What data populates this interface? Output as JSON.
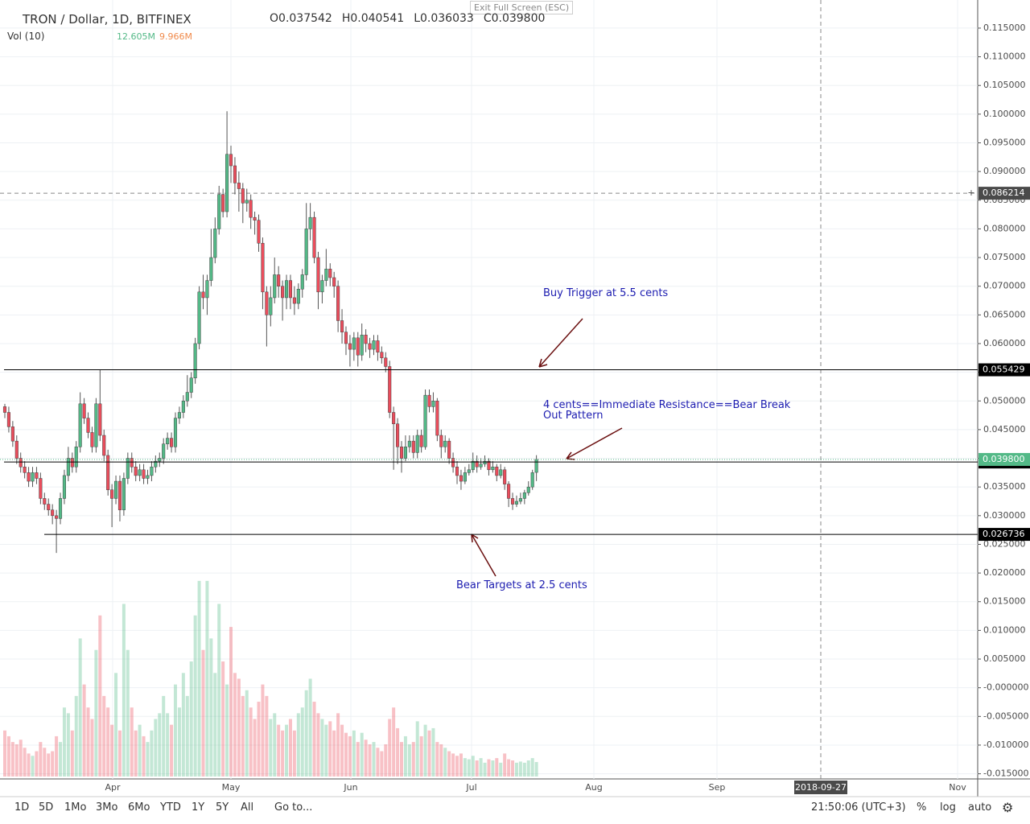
{
  "chart_data": {
    "type": "candlestick",
    "title": "TRON / Dollar, 1D, BITFINEX",
    "tooltip": "Exit Full Screen (ESC)",
    "ohlc_legend": [
      {
        "label": "O",
        "value": "0.037542"
      },
      {
        "label": "H",
        "value": "0.040541"
      },
      {
        "label": "L",
        "value": "0.036033"
      },
      {
        "label": "C",
        "value": "0.039800"
      }
    ],
    "volume_legend": {
      "title": "Vol (10)",
      "value": "12.605M",
      "ma": "9.966M"
    },
    "open": [
      0.049,
      0.048,
      0.0455,
      0.043,
      0.04,
      0.0385,
      0.0375,
      0.036,
      0.0375,
      0.0365,
      0.033,
      0.032,
      0.031,
      0.03,
      0.0295,
      0.033,
      0.037,
      0.04,
      0.0385,
      0.042,
      0.0495,
      0.047,
      0.0445,
      0.042,
      0.0495,
      0.044,
      0.0405,
      0.0345,
      0.033,
      0.036,
      0.031,
      0.0365,
      0.04,
      0.0385,
      0.037,
      0.038,
      0.0365,
      0.037,
      0.0385,
      0.0395,
      0.04,
      0.0425,
      0.0435,
      0.042,
      0.047,
      0.048,
      0.05,
      0.0515,
      0.054,
      0.06,
      0.069,
      0.068,
      0.071,
      0.075,
      0.08,
      0.086,
      0.083,
      0.093,
      0.091,
      0.088,
      0.087,
      0.0845,
      0.085,
      0.082,
      0.0815,
      0.0775,
      0.069,
      0.065,
      0.068,
      0.072,
      0.07,
      0.068,
      0.071,
      0.068,
      0.067,
      0.0695,
      0.072,
      0.08,
      0.082,
      0.075,
      0.069,
      0.071,
      0.073,
      0.0715,
      0.07,
      0.064,
      0.062,
      0.06,
      0.059,
      0.061,
      0.058,
      0.0615,
      0.06,
      0.059,
      0.0605,
      0.0585,
      0.0575,
      0.056,
      0.048,
      0.046,
      0.042,
      0.04,
      0.042,
      0.043,
      0.041,
      0.044,
      0.042,
      0.051,
      0.049,
      0.05,
      0.044,
      0.042,
      0.043,
      0.04,
      0.0385,
      0.037,
      0.036,
      0.0375,
      0.038,
      0.0395,
      0.0385,
      0.039,
      0.0395,
      0.038,
      0.0385,
      0.037,
      0.038,
      0.0355,
      0.033,
      0.032,
      0.0325,
      0.033,
      0.034,
      0.035,
      0.037542
    ],
    "high": [
      0.0495,
      0.049,
      0.0465,
      0.044,
      0.041,
      0.0395,
      0.0385,
      0.0385,
      0.0385,
      0.0375,
      0.034,
      0.033,
      0.032,
      0.031,
      0.034,
      0.038,
      0.042,
      0.041,
      0.043,
      0.0515,
      0.0505,
      0.048,
      0.0455,
      0.0505,
      0.0555,
      0.045,
      0.0415,
      0.0355,
      0.037,
      0.037,
      0.0375,
      0.041,
      0.041,
      0.0395,
      0.039,
      0.039,
      0.038,
      0.0395,
      0.0405,
      0.041,
      0.0435,
      0.0445,
      0.0445,
      0.048,
      0.049,
      0.051,
      0.0545,
      0.055,
      0.061,
      0.07,
      0.072,
      0.072,
      0.08,
      0.082,
      0.0875,
      0.087,
      0.1005,
      0.0945,
      0.0925,
      0.09,
      0.088,
      0.087,
      0.086,
      0.083,
      0.0825,
      0.0785,
      0.07,
      0.07,
      0.075,
      0.0735,
      0.071,
      0.072,
      0.072,
      0.07,
      0.0705,
      0.073,
      0.0845,
      0.0845,
      0.083,
      0.076,
      0.072,
      0.0765,
      0.074,
      0.0725,
      0.071,
      0.066,
      0.063,
      0.0615,
      0.062,
      0.062,
      0.0635,
      0.0625,
      0.061,
      0.0615,
      0.0615,
      0.0595,
      0.0585,
      0.057,
      0.049,
      0.047,
      0.043,
      0.044,
      0.044,
      0.044,
      0.045,
      0.045,
      0.052,
      0.052,
      0.0515,
      0.0505,
      0.045,
      0.044,
      0.0435,
      0.041,
      0.0395,
      0.038,
      0.0385,
      0.039,
      0.041,
      0.0405,
      0.04,
      0.0405,
      0.04,
      0.0395,
      0.039,
      0.039,
      0.0385,
      0.036,
      0.034,
      0.0335,
      0.034,
      0.0345,
      0.036,
      0.038,
      0.040541
    ],
    "low": [
      0.047,
      0.0445,
      0.042,
      0.039,
      0.0375,
      0.0365,
      0.035,
      0.035,
      0.0355,
      0.032,
      0.031,
      0.03,
      0.0285,
      0.0235,
      0.0285,
      0.032,
      0.036,
      0.0375,
      0.0375,
      0.041,
      0.046,
      0.0435,
      0.041,
      0.041,
      0.043,
      0.0395,
      0.0335,
      0.028,
      0.032,
      0.029,
      0.03,
      0.0355,
      0.0375,
      0.036,
      0.036,
      0.0355,
      0.0355,
      0.036,
      0.0375,
      0.0385,
      0.039,
      0.0415,
      0.041,
      0.041,
      0.046,
      0.047,
      0.049,
      0.0505,
      0.053,
      0.059,
      0.066,
      0.065,
      0.07,
      0.074,
      0.079,
      0.082,
      0.082,
      0.088,
      0.086,
      0.083,
      0.081,
      0.083,
      0.08,
      0.079,
      0.076,
      0.066,
      0.0595,
      0.063,
      0.067,
      0.068,
      0.064,
      0.066,
      0.066,
      0.065,
      0.066,
      0.068,
      0.071,
      0.078,
      0.074,
      0.066,
      0.067,
      0.07,
      0.07,
      0.068,
      0.062,
      0.06,
      0.058,
      0.056,
      0.057,
      0.056,
      0.057,
      0.0585,
      0.0575,
      0.058,
      0.057,
      0.0565,
      0.055,
      0.047,
      0.038,
      0.039,
      0.0375,
      0.0395,
      0.041,
      0.04,
      0.04,
      0.041,
      0.0415,
      0.048,
      0.048,
      0.043,
      0.04,
      0.041,
      0.039,
      0.0375,
      0.0355,
      0.0345,
      0.0355,
      0.037,
      0.0375,
      0.0375,
      0.038,
      0.0385,
      0.037,
      0.0375,
      0.036,
      0.0365,
      0.0345,
      0.0315,
      0.031,
      0.0315,
      0.032,
      0.032,
      0.0335,
      0.0345,
      0.036033
    ],
    "close": [
      0.048,
      0.0455,
      0.043,
      0.04,
      0.0385,
      0.0375,
      0.036,
      0.0375,
      0.0365,
      0.033,
      0.032,
      0.031,
      0.03,
      0.0295,
      0.033,
      0.037,
      0.04,
      0.0385,
      0.042,
      0.0495,
      0.047,
      0.0445,
      0.042,
      0.0495,
      0.044,
      0.0405,
      0.0345,
      0.033,
      0.036,
      0.031,
      0.0365,
      0.04,
      0.0385,
      0.037,
      0.038,
      0.0365,
      0.037,
      0.0385,
      0.0395,
      0.04,
      0.0425,
      0.0435,
      0.042,
      0.047,
      0.048,
      0.05,
      0.0515,
      0.054,
      0.06,
      0.069,
      0.068,
      0.071,
      0.075,
      0.08,
      0.086,
      0.083,
      0.093,
      0.091,
      0.088,
      0.087,
      0.0845,
      0.085,
      0.082,
      0.0815,
      0.0775,
      0.069,
      0.065,
      0.068,
      0.072,
      0.07,
      0.068,
      0.071,
      0.068,
      0.067,
      0.0695,
      0.072,
      0.08,
      0.082,
      0.075,
      0.069,
      0.071,
      0.073,
      0.0715,
      0.07,
      0.064,
      0.062,
      0.06,
      0.059,
      0.061,
      0.058,
      0.0615,
      0.06,
      0.059,
      0.0605,
      0.0585,
      0.0575,
      0.056,
      0.048,
      0.046,
      0.042,
      0.04,
      0.042,
      0.043,
      0.041,
      0.044,
      0.042,
      0.051,
      0.049,
      0.05,
      0.044,
      0.042,
      0.043,
      0.04,
      0.0385,
      0.037,
      0.036,
      0.0375,
      0.038,
      0.0395,
      0.0385,
      0.039,
      0.0395,
      0.038,
      0.0385,
      0.037,
      0.038,
      0.0355,
      0.033,
      0.032,
      0.0325,
      0.033,
      0.034,
      0.035,
      0.0375,
      0.0398
    ],
    "volume": [
      40,
      35,
      30,
      28,
      32,
      25,
      20,
      18,
      22,
      30,
      25,
      20,
      22,
      35,
      30,
      60,
      55,
      40,
      70,
      120,
      80,
      60,
      50,
      110,
      140,
      70,
      60,
      45,
      90,
      40,
      150,
      110,
      60,
      40,
      45,
      35,
      30,
      40,
      50,
      55,
      70,
      55,
      45,
      80,
      60,
      90,
      70,
      100,
      140,
      170,
      110,
      170,
      120,
      90,
      150,
      100,
      80,
      130,
      90,
      85,
      70,
      75,
      60,
      50,
      65,
      80,
      70,
      50,
      55,
      45,
      40,
      45,
      50,
      40,
      55,
      60,
      75,
      85,
      65,
      55,
      50,
      45,
      48,
      40,
      55,
      45,
      38,
      35,
      40,
      30,
      38,
      32,
      28,
      30,
      25,
      22,
      28,
      50,
      60,
      42,
      30,
      35,
      28,
      30,
      48,
      35,
      45,
      40,
      42,
      30,
      28,
      25,
      22,
      20,
      18,
      20,
      16,
      15,
      18,
      14,
      16,
      12,
      15,
      14,
      16,
      12,
      20,
      15,
      14,
      12,
      13,
      12,
      14,
      16,
      12.605
    ],
    "up_color": "#53b987",
    "down_color": "#eb4d5c",
    "ylim": [
      -0.0159,
      0.1199
    ],
    "yticks": [
      {
        "value": 0.115,
        "label": "0.115000"
      },
      {
        "value": 0.11,
        "label": "0.110000"
      },
      {
        "value": 0.105,
        "label": "0.105000"
      },
      {
        "value": 0.1,
        "label": "0.100000"
      },
      {
        "value": 0.095,
        "label": "0.095000"
      },
      {
        "value": 0.09,
        "label": "0.090000"
      },
      {
        "value": 0.085,
        "label": "0.085000"
      },
      {
        "value": 0.08,
        "label": "0.080000"
      },
      {
        "value": 0.075,
        "label": "0.075000"
      },
      {
        "value": 0.07,
        "label": "0.070000"
      },
      {
        "value": 0.065,
        "label": "0.065000"
      },
      {
        "value": 0.06,
        "label": "0.060000"
      },
      {
        "value": 0.055,
        "label": "0.055000"
      },
      {
        "value": 0.05,
        "label": "0.050000"
      },
      {
        "value": 0.045,
        "label": "0.045000"
      },
      {
        "value": 0.04,
        "label": "0.040000"
      },
      {
        "value": 0.035,
        "label": "0.035000"
      },
      {
        "value": 0.03,
        "label": "0.030000"
      },
      {
        "value": 0.025,
        "label": "0.025000"
      },
      {
        "value": 0.02,
        "label": "0.020000"
      },
      {
        "value": 0.015,
        "label": "0.015000"
      },
      {
        "value": 0.01,
        "label": "0.010000"
      },
      {
        "value": 0.005,
        "label": "0.005000"
      },
      {
        "value": 0,
        "label": "-0.000000"
      },
      {
        "value": -0.005,
        "label": "-0.005000"
      },
      {
        "value": -0.01,
        "label": "-0.010000"
      },
      {
        "value": -0.015,
        "label": "-0.015000"
      }
    ],
    "grid": true,
    "xticks": [
      "Apr",
      "May",
      "Jun",
      "Jul",
      "Aug",
      "Sep",
      "Nov"
    ],
    "levels": [
      0.055429,
      0.039353,
      0.026736
    ],
    "last_price": {
      "value": 0.0398,
      "label": "0.039800"
    },
    "crosshair": {
      "price": 0.086214,
      "date": "2018-09-27"
    },
    "annotations": [
      "Buy Trigger at 5.5 cents",
      "4 cents==Immediate Resistance==Bear Break Out Pattern",
      "Bear Targets at 2.5 cents"
    ]
  },
  "toolbar": {
    "ranges": [
      "1D",
      "5D",
      "1Mo",
      "3Mo",
      "6Mo",
      "YTD",
      "1Y",
      "5Y",
      "All"
    ],
    "goto": "Go to...",
    "clock": "21:50:06 (UTC+3)",
    "options": [
      "%",
      "log",
      "auto"
    ]
  }
}
